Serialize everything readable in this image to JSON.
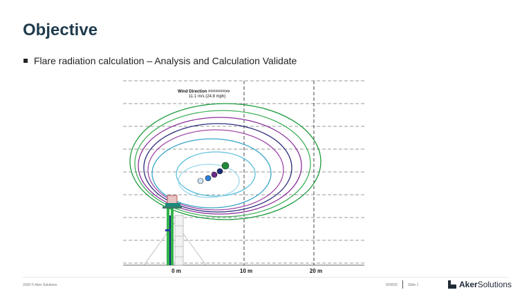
{
  "slide": {
    "title": "Objective",
    "bullet": "Flare radiation calculation – Analysis and Calculation Validate"
  },
  "figure": {
    "wind_line1": "Wind Direction =======>>",
    "wind_line2": "11.1 m/s (24.8 mph)",
    "x_ticks": [
      "0 m",
      "10 m",
      "20 m"
    ],
    "contour_colors": [
      "#1a9a3a",
      "#3fb05a",
      "#8a2e9a",
      "#2b2a7a",
      "#a04aa8",
      "#38a5c8",
      "#5cc0dc",
      "#9ad8ea"
    ],
    "marker_colors": [
      "#1f8a3a",
      "#1c2c7a",
      "#6a2a8a",
      "#2f7fd8",
      "#cfe6f7"
    ]
  },
  "footer": {
    "copyright": "2020 © Aker Solutions",
    "date": "9/28/20",
    "slide": "Slide 1",
    "logo_bold": "Aker",
    "logo_light": "Solutions"
  }
}
